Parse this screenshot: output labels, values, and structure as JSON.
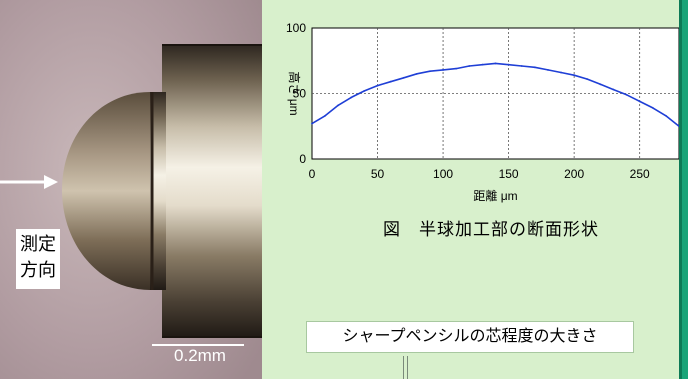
{
  "photo": {
    "direction_label_line1": "測定",
    "direction_label_line2": "方向",
    "scale_bar_label": "0.2mm"
  },
  "caption": "図　半球加工部の断面形状",
  "note": "シャープペンシルの芯程度の大きさ",
  "colors": {
    "background": "#d8f0cc",
    "series": "#1f3fd6",
    "accent_bar": "#19a478"
  },
  "chart_data": {
    "type": "line",
    "title": "",
    "xlabel": "距離 μm",
    "ylabel": "高さ μm",
    "xlim": [
      0,
      280
    ],
    "ylim": [
      0,
      100
    ],
    "xticks": [
      0,
      50,
      100,
      150,
      200,
      250
    ],
    "yticks": [
      0,
      50,
      100
    ],
    "grid": true,
    "series": [
      {
        "x": [
          0,
          10,
          20,
          30,
          40,
          50,
          60,
          70,
          80,
          90,
          100,
          110,
          120,
          130,
          140,
          150,
          160,
          170,
          180,
          190,
          200,
          210,
          220,
          230,
          240,
          250,
          260,
          270,
          280
        ],
        "y": [
          27,
          33,
          41,
          47,
          52,
          56,
          59,
          62,
          65,
          67,
          68,
          69,
          71,
          72,
          73,
          72,
          71,
          70,
          68,
          66,
          64,
          61,
          57,
          53,
          49,
          44,
          39,
          33,
          25
        ]
      }
    ]
  }
}
